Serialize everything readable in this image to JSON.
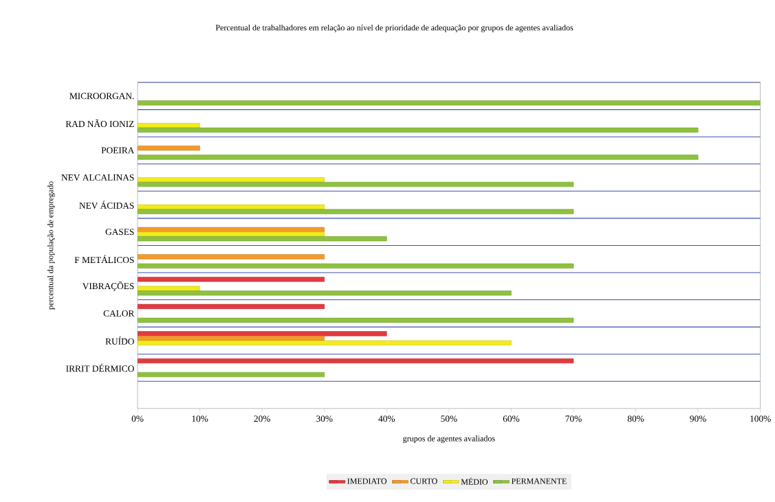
{
  "chart_data": {
    "type": "bar",
    "orientation": "horizontal",
    "title": "Percentual de trabalhadores em relação ao nível de prioridade de adequação por grupos de agentes avaliados",
    "xlabel": "grupos de agentes avaliados",
    "ylabel": "percentual da população de empregado",
    "categories": [
      "MICROORGAN.",
      "RAD NÃO IONIZ",
      "POEIRA",
      "NEV ALCALINAS",
      "NEV ÁCIDAS",
      "GASES",
      "F METÁLICOS",
      "VIBRAÇÕES",
      "CALOR",
      "RUÍDO",
      "IRRIT DÉRMICO"
    ],
    "series": [
      {
        "name": "IMEDIATO",
        "color": "#e23a3f",
        "values": [
          null,
          null,
          null,
          null,
          null,
          null,
          null,
          30,
          30,
          40,
          70
        ]
      },
      {
        "name": "CURTO",
        "color": "#f39a2b",
        "values": [
          null,
          null,
          10,
          null,
          null,
          30,
          30,
          null,
          null,
          30,
          null
        ]
      },
      {
        "name": "MÉDIO",
        "color": "#f2ec1c",
        "values": [
          null,
          10,
          null,
          30,
          30,
          30,
          null,
          10,
          null,
          60,
          null
        ]
      },
      {
        "name": "PERMANENTE",
        "color": "#8dc13f",
        "values": [
          100,
          90,
          90,
          70,
          70,
          40,
          70,
          60,
          70,
          null,
          30
        ]
      }
    ],
    "xlim": [
      0,
      100
    ],
    "xticks": [
      {
        "value": 0,
        "label": "0%"
      },
      {
        "value": 10,
        "label": "10%"
      },
      {
        "value": 20,
        "label": "20%"
      },
      {
        "value": 30,
        "label": "30%"
      },
      {
        "value": 40,
        "label": "40%"
      },
      {
        "value": 50,
        "label": "50%"
      },
      {
        "value": 60,
        "label": "60%"
      },
      {
        "value": 70,
        "label": "70%"
      },
      {
        "value": 80,
        "label": "80%"
      },
      {
        "value": 90,
        "label": "90%"
      },
      {
        "value": 100,
        "label": "100%"
      }
    ],
    "grid": "y",
    "legend": "bottom"
  }
}
